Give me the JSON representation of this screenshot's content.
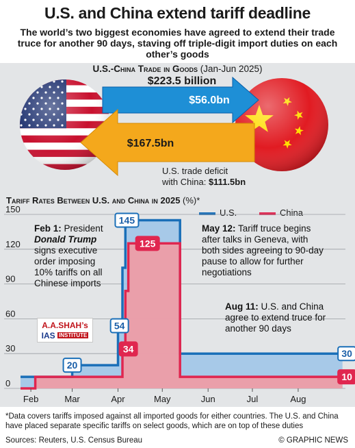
{
  "header": {
    "title": "U.S. and China extend tariff deadline",
    "subtitle": "The world’s two biggest economies have agreed to extend their trade truce for another 90 days, staving off triple-digit import duties on each other’s goods"
  },
  "trade": {
    "heading": "U.S.-China Trade in Goods",
    "period": "(Jan-Jun 2025)",
    "total": "$223.5 billion",
    "us_to_china": "$56.0bn",
    "china_to_us": "$167.5bn",
    "deficit_text": "U.S. trade deficit",
    "deficit_label": "with China:",
    "deficit_value": "$111.5bn",
    "us_arrow_color": "#1e8fd6",
    "china_arrow_color": "#f4a81c"
  },
  "chart_data": {
    "type": "line",
    "title": "Tariff Rates Between U.S. and China in 2025",
    "ylabel": "(%)*",
    "ylim": [
      0,
      150
    ],
    "yticks": [
      "150",
      "120",
      "90",
      "60",
      "30",
      "0"
    ],
    "yticks_values": [
      150,
      120,
      90,
      60,
      30,
      0
    ],
    "xticks": [
      "Feb",
      "Mar",
      "Apr",
      "May",
      "Jun",
      "Jul",
      "Aug"
    ],
    "xticks_day": [
      32,
      60,
      91,
      121,
      152,
      182,
      213
    ],
    "xlim_day": [
      25,
      245
    ],
    "series": [
      {
        "name": "U.S.",
        "color": "#1a6fb8",
        "points": [
          [
            25,
            10
          ],
          [
            60,
            10
          ],
          [
            60,
            20
          ],
          [
            91,
            20
          ],
          [
            91,
            54
          ],
          [
            94,
            54
          ],
          [
            94,
            104
          ],
          [
            96,
            104
          ],
          [
            96,
            145
          ],
          [
            133,
            145
          ],
          [
            133,
            30
          ],
          [
            243,
            30
          ]
        ]
      },
      {
        "name": "China",
        "color": "#e0264f",
        "points": [
          [
            25,
            0
          ],
          [
            35,
            0
          ],
          [
            35,
            10
          ],
          [
            94,
            10
          ],
          [
            94,
            34
          ],
          [
            96,
            34
          ],
          [
            96,
            84
          ],
          [
            98,
            84
          ],
          [
            98,
            125
          ],
          [
            133,
            125
          ],
          [
            133,
            10
          ],
          [
            243,
            10
          ]
        ]
      }
    ],
    "value_labels": [
      {
        "series": "U.S.",
        "text": "20",
        "day": 60,
        "value": 20
      },
      {
        "series": "U.S.",
        "text": "54",
        "day": 92,
        "value": 54
      },
      {
        "series": "U.S.",
        "text": "145",
        "day": 97,
        "value": 145
      },
      {
        "series": "U.S.",
        "text": "30",
        "day": 246,
        "value": 30
      },
      {
        "series": "China",
        "text": "34",
        "day": 98,
        "value": 34
      },
      {
        "series": "China",
        "text": "125",
        "day": 111,
        "value": 125
      },
      {
        "series": "China",
        "text": "10",
        "day": 246,
        "value": 10
      }
    ],
    "annotations": {
      "feb_date": "Feb 1:",
      "feb_text_a": "President",
      "feb_name": "Donald Trump",
      "feb_text_b": "signs executive order imposing 10% tariffs on all Chinese imports",
      "may_date": "May 12:",
      "may_text": "Tariff truce begins after talks in Geneva, with both sides agreeing to 90-day pause to allow for further negotiations",
      "aug_date": "Aug 11:",
      "aug_text": "U.S. and China agree to extend truce for another 90 days"
    }
  },
  "logo": {
    "line1": "A.A.SHAH’s",
    "line2": "IAS",
    "line3": "INSTITUTE"
  },
  "footer": {
    "footnote": "*Data covers tariffs imposed against all imported goods for either countries. The U.S. and China have placed separate specific tariffs on select goods, which are on top of these duties",
    "sources": "Sources: Reuters, U.S. Census Bureau",
    "credit": "© GRAPHIC NEWS"
  }
}
